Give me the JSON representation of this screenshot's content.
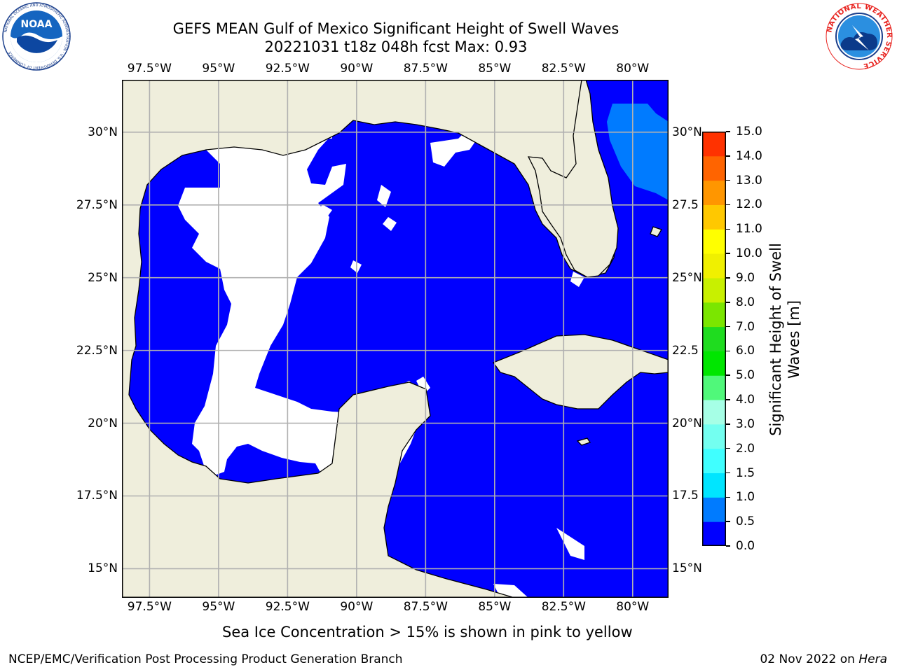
{
  "title": {
    "line1": "GEFS MEAN Gulf of Mexico Significant Height of Swell Waves",
    "line2": "20221031 t18z 048h fcst   Max: 0.93"
  },
  "logos": {
    "noaa": {
      "text": "NOAA",
      "ring_text": "NATIONAL OCEANIC AND ATMOSPHERIC ADMINISTRATION · U.S. DEPARTMENT OF COMMERCE",
      "color": "#0a4ea2"
    },
    "nws": {
      "ring_text": "NATIONAL WEATHER SERVICE",
      "color": "#e8231f"
    }
  },
  "map": {
    "lon_range": [
      -98.5,
      -78.7
    ],
    "lat_range": [
      14.0,
      31.8
    ],
    "lon_ticks": [
      {
        "value": -97.5,
        "label": "97.5°W"
      },
      {
        "value": -95.0,
        "label": "95°W"
      },
      {
        "value": -92.5,
        "label": "92.5°W"
      },
      {
        "value": -90.0,
        "label": "90°W"
      },
      {
        "value": -87.5,
        "label": "87.5°W"
      },
      {
        "value": -85.0,
        "label": "85°W"
      },
      {
        "value": -82.5,
        "label": "82.5°W"
      },
      {
        "value": -80.0,
        "label": "80°W"
      }
    ],
    "lat_ticks": [
      {
        "value": 30.0,
        "label": "30°N",
        "right_label": "30°N"
      },
      {
        "value": 27.5,
        "label": "27.5°N",
        "right_label": "27.5"
      },
      {
        "value": 25.0,
        "label": "25°N",
        "right_label": "25°N"
      },
      {
        "value": 22.5,
        "label": "22.5°N",
        "right_label": "22.5"
      },
      {
        "value": 20.0,
        "label": "20°N",
        "right_label": "20°N"
      },
      {
        "value": 17.5,
        "label": "17.5°N",
        "right_label": "17.5"
      },
      {
        "value": 15.0,
        "label": "15°N",
        "right_label": "15°N"
      }
    ],
    "land_color": "#efeedc",
    "ocean_fill": "#0000ff",
    "swell_0_5_1_0_color": "#007bff",
    "grid_color": "#b0b0b0"
  },
  "colorbar": {
    "label": "Significant Height of Swell Waves [m]",
    "label_line1": "Significant Height of Swell",
    "label_line2": "Waves [m]",
    "levels": [
      "0.0",
      "0.5",
      "1.0",
      "1.5",
      "2.0",
      "3.0",
      "4.0",
      "5.0",
      "6.0",
      "7.0",
      "8.0",
      "9.0",
      "10.0",
      "11.0",
      "12.0",
      "13.0",
      "14.0",
      "15.0"
    ],
    "colors": [
      "#0000ff",
      "#007bff",
      "#00e5ff",
      "#40ffff",
      "#73fff0",
      "#a6ffe6",
      "#50f87a",
      "#00e600",
      "#1fdc1f",
      "#7be600",
      "#c8f000",
      "#f0f000",
      "#ffff00",
      "#ffc800",
      "#ff9600",
      "#ff6400",
      "#ff3200",
      "#ff0000"
    ]
  },
  "caption": "Sea Ice Concentration > 15% is shown in pink to yellow",
  "footer": {
    "left": "NCEP/EMC/Verification Post Processing Product Generation Branch",
    "date": "02 Nov 2022 on ",
    "host": "Hera"
  }
}
